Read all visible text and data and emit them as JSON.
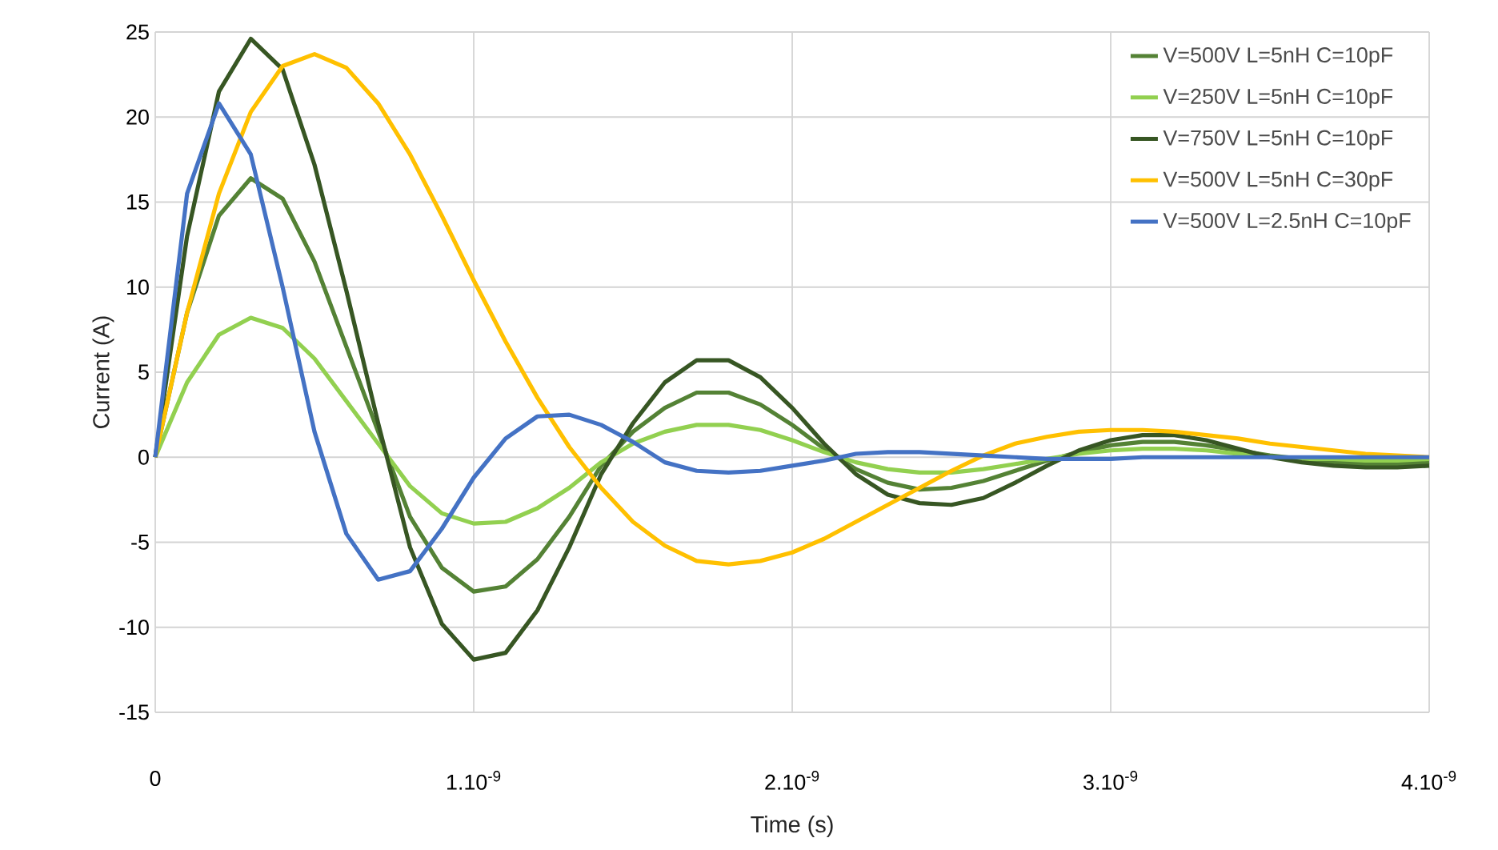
{
  "chart_data": {
    "type": "line",
    "xlabel": "Time (s)",
    "ylabel": "Current (A)",
    "categories": [
      "0",
      null,
      null,
      null,
      null,
      null,
      null,
      null,
      null,
      null,
      "1.10$^{-9}$",
      null,
      null,
      null,
      null,
      null,
      null,
      null,
      null,
      null,
      "2.10$^{-9}$",
      null,
      null,
      null,
      null,
      null,
      null,
      null,
      null,
      null,
      "3.10$^{-9}$",
      null,
      null,
      null,
      null,
      null,
      null,
      null,
      null,
      null,
      "4.10$^{-9}$"
    ],
    "series": [
      {
        "name": "V=500V L=5nH C=10pF",
        "color": "#548235",
        "values": [
          0,
          8.5,
          14.2,
          16.4,
          15.2,
          11.5,
          6.5,
          1.5,
          -3.5,
          -6.5,
          -7.9,
          -7.6,
          -6,
          -3.5,
          -0.5,
          1.5,
          2.9,
          3.8,
          3.8,
          3.1,
          1.9,
          0.5,
          -0.7,
          -1.5,
          -1.9,
          -1.8,
          -1.4,
          -0.8,
          -0.2,
          0.3,
          0.7,
          0.9,
          0.9,
          0.7,
          0.4,
          0.1,
          -0.1,
          -0.3,
          -0.4,
          -0.4,
          -0.3
        ]
      },
      {
        "name": "V=250V L=5nH C=10pF",
        "color": "#92d050",
        "values": [
          0,
          4.4,
          7.2,
          8.2,
          7.6,
          5.8,
          3.3,
          0.8,
          -1.7,
          -3.3,
          -3.9,
          -3.8,
          -3,
          -1.8,
          -0.3,
          0.8,
          1.5,
          1.9,
          1.9,
          1.6,
          1,
          0.3,
          -0.3,
          -0.7,
          -0.9,
          -0.9,
          -0.7,
          -0.4,
          -0.1,
          0.2,
          0.4,
          0.5,
          0.5,
          0.4,
          0.2,
          0,
          -0.1,
          -0.1,
          -0.2,
          -0.2,
          -0.1
        ]
      },
      {
        "name": "V=750V L=5nH C=10pF",
        "color": "#375623",
        "values": [
          0,
          13,
          21.5,
          24.6,
          22.8,
          17.2,
          9.8,
          2,
          -5.3,
          -9.8,
          -11.9,
          -11.5,
          -9,
          -5.3,
          -1,
          2,
          4.4,
          5.7,
          5.7,
          4.7,
          2.9,
          0.8,
          -1,
          -2.2,
          -2.7,
          -2.8,
          -2.4,
          -1.5,
          -0.5,
          0.4,
          1,
          1.3,
          1.3,
          1,
          0.5,
          0,
          -0.3,
          -0.5,
          -0.6,
          -0.6,
          -0.5
        ]
      },
      {
        "name": "V=500V L=5nH C=30pF",
        "color": "#ffc000",
        "values": [
          0,
          8.5,
          15.5,
          20.3,
          23,
          23.7,
          22.9,
          20.8,
          17.8,
          14.2,
          10.4,
          6.8,
          3.5,
          0.6,
          -1.8,
          -3.8,
          -5.2,
          -6.1,
          -6.3,
          -6.1,
          -5.6,
          -4.8,
          -3.8,
          -2.8,
          -1.8,
          -0.8,
          0.1,
          0.8,
          1.2,
          1.5,
          1.6,
          1.6,
          1.5,
          1.3,
          1.1,
          0.8,
          0.6,
          0.4,
          0.2,
          0.1,
          0
        ]
      },
      {
        "name": "V=500V L=2.5nH C=10pF",
        "color": "#4472c4",
        "values": [
          0,
          15.5,
          20.8,
          17.8,
          10,
          1.5,
          -4.5,
          -7.2,
          -6.7,
          -4.2,
          -1.2,
          1.1,
          2.4,
          2.5,
          1.9,
          0.9,
          -0.3,
          -0.8,
          -0.9,
          -0.8,
          -0.5,
          -0.2,
          0.2,
          0.3,
          0.3,
          0.2,
          0.1,
          0,
          -0.1,
          -0.1,
          -0.1,
          0,
          0,
          0,
          0,
          0,
          0,
          0,
          0,
          0,
          0
        ]
      }
    ],
    "ylim": [
      -15,
      25
    ],
    "yticks": [
      -15,
      -10,
      -5,
      0,
      5,
      10,
      15,
      20,
      25
    ],
    "grid": true,
    "legend": "top right",
    "marker": "none",
    "line_style": "solid"
  }
}
